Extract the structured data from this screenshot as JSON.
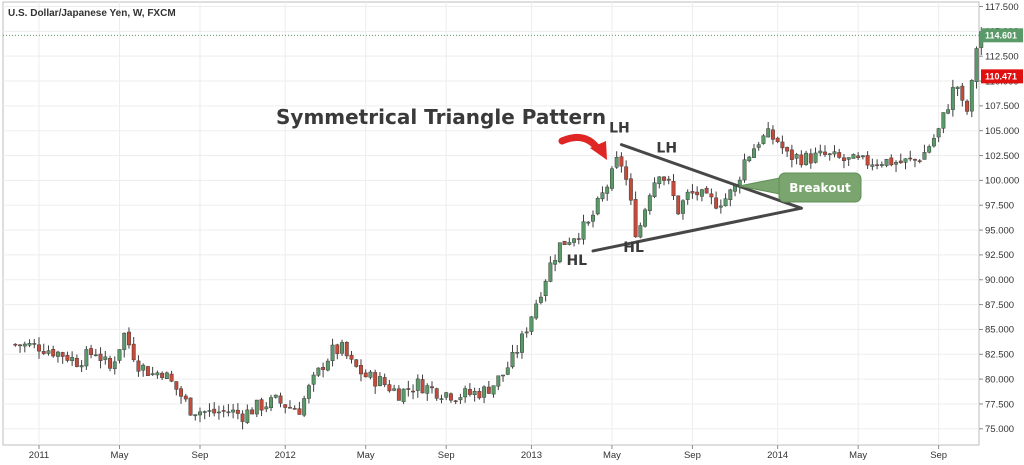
{
  "chart_data": {
    "type": "candlestick",
    "instrument": "U.S. Dollar/Japanese Yen, W, FXCM",
    "title": "Symmetrical Triangle Pattern",
    "ylim": [
      73.5,
      117.9
    ],
    "y_ticks": [
      "117.500",
      "115.000",
      "112.500",
      "110.000",
      "107.500",
      "105.000",
      "102.500",
      "100.000",
      "97.500",
      "95.000",
      "92.500",
      "90.000",
      "87.500",
      "85.000",
      "82.500",
      "80.000",
      "77.500",
      "75.000"
    ],
    "x_ticks": [
      {
        "label": "2011",
        "t": 0.0
      },
      {
        "label": "May",
        "t": 17.0
      },
      {
        "label": "Sep",
        "t": 34.0
      },
      {
        "label": "2012",
        "t": 52.0
      },
      {
        "label": "May",
        "t": 69.0
      },
      {
        "label": "Sep",
        "t": 86.0
      },
      {
        "label": "2013",
        "t": 104.0
      },
      {
        "label": "May",
        "t": 121.0
      },
      {
        "label": "Sep",
        "t": 138.0
      },
      {
        "label": "2014",
        "t": 156.0
      },
      {
        "label": "May",
        "t": 173.0
      },
      {
        "label": "Sep",
        "t": 190.0
      }
    ],
    "anchors": [
      {
        "t": -6,
        "v": 83.5
      },
      {
        "t": 0,
        "v": 83.3
      },
      {
        "t": 5,
        "v": 82.5
      },
      {
        "t": 8,
        "v": 81.8
      },
      {
        "t": 12,
        "v": 82.8
      },
      {
        "t": 15,
        "v": 81.0
      },
      {
        "t": 18,
        "v": 84.5
      },
      {
        "t": 21,
        "v": 81.5
      },
      {
        "t": 24,
        "v": 80.5
      },
      {
        "t": 26,
        "v": 80.8
      },
      {
        "t": 29,
        "v": 79.0
      },
      {
        "t": 32,
        "v": 77.0
      },
      {
        "t": 36,
        "v": 76.6
      },
      {
        "t": 40,
        "v": 76.8
      },
      {
        "t": 43,
        "v": 76.4
      },
      {
        "t": 46,
        "v": 77.2
      },
      {
        "t": 50,
        "v": 77.8
      },
      {
        "t": 53,
        "v": 77.2
      },
      {
        "t": 55,
        "v": 77.0
      },
      {
        "t": 57,
        "v": 79.0
      },
      {
        "t": 60,
        "v": 81.5
      },
      {
        "t": 62,
        "v": 82.8
      },
      {
        "t": 64,
        "v": 83.0
      },
      {
        "t": 66,
        "v": 81.5
      },
      {
        "t": 69,
        "v": 80.3
      },
      {
        "t": 72,
        "v": 79.8
      },
      {
        "t": 76,
        "v": 78.6
      },
      {
        "t": 80,
        "v": 79.5
      },
      {
        "t": 84,
        "v": 78.8
      },
      {
        "t": 88,
        "v": 78.4
      },
      {
        "t": 91,
        "v": 78.5
      },
      {
        "t": 94,
        "v": 78.8
      },
      {
        "t": 96,
        "v": 79.5
      },
      {
        "t": 98,
        "v": 80.5
      },
      {
        "t": 100,
        "v": 82.0
      },
      {
        "t": 102,
        "v": 84.0
      },
      {
        "t": 104,
        "v": 86.5
      },
      {
        "t": 106,
        "v": 89.0
      },
      {
        "t": 108,
        "v": 91.5
      },
      {
        "t": 110,
        "v": 93.5
      },
      {
        "t": 113,
        "v": 94.5
      },
      {
        "t": 116,
        "v": 95.5
      },
      {
        "t": 117,
        "v": 96.5
      },
      {
        "t": 119,
        "v": 98.5
      },
      {
        "t": 121,
        "v": 100.5
      },
      {
        "t": 122.5,
        "v": 102.5
      },
      {
        "t": 124,
        "v": 100.0
      },
      {
        "t": 126,
        "v": 95.0
      },
      {
        "t": 127,
        "v": 95.5
      },
      {
        "t": 129,
        "v": 99.0
      },
      {
        "t": 131,
        "v": 101.0
      },
      {
        "t": 133,
        "v": 99.5
      },
      {
        "t": 135,
        "v": 97.0
      },
      {
        "t": 137,
        "v": 98.5
      },
      {
        "t": 139,
        "v": 98.7
      },
      {
        "t": 141,
        "v": 98.0
      },
      {
        "t": 143,
        "v": 97.8
      },
      {
        "t": 145,
        "v": 98.2
      },
      {
        "t": 147,
        "v": 99.2
      },
      {
        "t": 149,
        "v": 102.0
      },
      {
        "t": 152,
        "v": 104.0
      },
      {
        "t": 154,
        "v": 104.5
      },
      {
        "t": 156,
        "v": 104.0
      },
      {
        "t": 158,
        "v": 102.5
      },
      {
        "t": 162,
        "v": 102.2
      },
      {
        "t": 166,
        "v": 102.5
      },
      {
        "t": 170,
        "v": 102.0
      },
      {
        "t": 174,
        "v": 101.8
      },
      {
        "t": 178,
        "v": 102.0
      },
      {
        "t": 182,
        "v": 101.8
      },
      {
        "t": 185,
        "v": 102.0
      },
      {
        "t": 187,
        "v": 102.8
      },
      {
        "t": 190,
        "v": 105.0
      },
      {
        "t": 193,
        "v": 109.0
      },
      {
        "t": 194,
        "v": 109.5
      },
      {
        "t": 195,
        "v": 107.5
      },
      {
        "t": 196,
        "v": 107.0
      },
      {
        "t": 197,
        "v": 109.5
      },
      {
        "t": 198,
        "v": 113.5
      },
      {
        "t": 199,
        "v": 115.0
      }
    ],
    "triangle": {
      "upper_start": {
        "t": 123,
        "v": 103.6
      },
      "lower_start": {
        "t": 117,
        "v": 92.9
      },
      "apex": {
        "t": 161,
        "v": 97.2
      }
    },
    "labels": [
      {
        "text": "LH",
        "t": 123,
        "v": 104.8
      },
      {
        "text": "LH",
        "t": 133,
        "v": 102.8
      },
      {
        "text": "HL",
        "t": 114,
        "v": 91.5
      },
      {
        "text": "HL",
        "t": 126,
        "v": 92.8
      }
    ],
    "callout": {
      "text": "Breakout"
    },
    "price_badges": [
      {
        "text": "114.601",
        "v": 114.6,
        "color": "#5a9a68"
      },
      {
        "text": "110.471",
        "v": 110.47,
        "color": "#e01010"
      }
    ],
    "colors": {
      "up": "#5a9a68",
      "down": "#c64a3a",
      "grid": "#ededed",
      "arrow": "#e02525",
      "triangle": "#474747",
      "callout": "#7aa56f"
    }
  }
}
